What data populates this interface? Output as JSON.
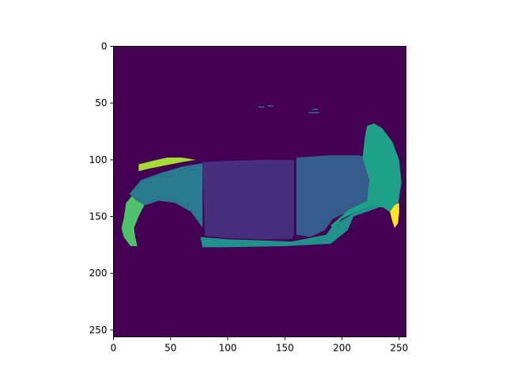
{
  "chart_data": {
    "type": "heatmap",
    "title": "",
    "xlabel": "",
    "ylabel": "",
    "xlim": [
      0,
      256
    ],
    "ylim": [
      256,
      0
    ],
    "x_ticks": [
      0,
      50,
      100,
      150,
      200,
      250
    ],
    "y_ticks": [
      0,
      50,
      100,
      150,
      200,
      250
    ],
    "colormap": "viridis",
    "grid": false,
    "background_value_color": "#440154",
    "segments": [
      {
        "id": "front-wheel-arch",
        "color": "#4fc16b",
        "polygon": [
          [
            9,
            152
          ],
          [
            11,
            138
          ],
          [
            16,
            132
          ],
          [
            21,
            133
          ],
          [
            27,
            140
          ],
          [
            22,
            150
          ],
          [
            18,
            160
          ],
          [
            19,
            168
          ],
          [
            21,
            176
          ],
          [
            15,
            176
          ],
          [
            9,
            168
          ],
          [
            7,
            160
          ]
        ]
      },
      {
        "id": "headlight-strip",
        "color": "#a5db36",
        "polygon": [
          [
            22,
            104
          ],
          [
            34,
            101
          ],
          [
            47,
            98
          ],
          [
            60,
            98
          ],
          [
            72,
            100
          ],
          [
            60,
            102
          ],
          [
            45,
            105
          ],
          [
            30,
            108
          ],
          [
            22,
            110
          ]
        ]
      },
      {
        "id": "front-fender",
        "color": "#2a788e",
        "polygon": [
          [
            14,
            130
          ],
          [
            24,
            118
          ],
          [
            40,
            112
          ],
          [
            60,
            106
          ],
          [
            78,
            103
          ],
          [
            78,
            160
          ],
          [
            68,
            146
          ],
          [
            54,
            138
          ],
          [
            40,
            136
          ],
          [
            28,
            140
          ],
          [
            20,
            136
          ]
        ]
      },
      {
        "id": "front-door",
        "color": "#472f7d",
        "polygon": [
          [
            78,
            102
          ],
          [
            100,
            101
          ],
          [
            130,
            100
          ],
          [
            158,
            100
          ],
          [
            158,
            166
          ],
          [
            156,
            170
          ],
          [
            130,
            170
          ],
          [
            100,
            169
          ],
          [
            80,
            167
          ]
        ]
      },
      {
        "id": "rear-door",
        "color": "#365c8d",
        "polygon": [
          [
            160,
            98
          ],
          [
            190,
            96
          ],
          [
            215,
            96
          ],
          [
            222,
            98
          ],
          [
            224,
            120
          ],
          [
            222,
            136
          ],
          [
            205,
            146
          ],
          [
            192,
            152
          ],
          [
            185,
            162
          ],
          [
            172,
            168
          ],
          [
            160,
            166
          ]
        ]
      },
      {
        "id": "rear-quarter",
        "color": "#1fa187",
        "polygon": [
          [
            218,
            98
          ],
          [
            220,
            80
          ],
          [
            222,
            70
          ],
          [
            228,
            68
          ],
          [
            235,
            72
          ],
          [
            244,
            84
          ],
          [
            250,
            100
          ],
          [
            252,
            120
          ],
          [
            249,
            140
          ],
          [
            245,
            148
          ],
          [
            236,
            142
          ],
          [
            226,
            141
          ],
          [
            212,
            146
          ],
          [
            200,
            152
          ],
          [
            192,
            160
          ],
          [
            190,
            158
          ],
          [
            206,
            144
          ],
          [
            222,
            136
          ],
          [
            224,
            118
          ]
        ]
      },
      {
        "id": "rocker-panel",
        "color": "#21918c",
        "polygon": [
          [
            76,
            168
          ],
          [
            100,
            170
          ],
          [
            130,
            171
          ],
          [
            156,
            172
          ],
          [
            186,
            166
          ],
          [
            192,
            158
          ],
          [
            212,
            146
          ],
          [
            226,
            141
          ],
          [
            235,
            141
          ],
          [
            210,
            150
          ],
          [
            205,
            162
          ],
          [
            195,
            170
          ],
          [
            190,
            174
          ],
          [
            150,
            176
          ],
          [
            100,
            177
          ],
          [
            78,
            177
          ]
        ]
      },
      {
        "id": "taillight",
        "color": "#fde725",
        "polygon": [
          [
            242,
            146
          ],
          [
            246,
            140
          ],
          [
            250,
            138
          ],
          [
            250,
            146
          ],
          [
            249,
            156
          ],
          [
            246,
            160
          ],
          [
            244,
            154
          ]
        ]
      },
      {
        "id": "roof-fragment-1",
        "color": "#2a788e",
        "polygon": [
          [
            127,
            53
          ],
          [
            132,
            53
          ],
          [
            132,
            54
          ],
          [
            127,
            54
          ]
        ]
      },
      {
        "id": "roof-fragment-2",
        "color": "#2a788e",
        "polygon": [
          [
            135,
            52
          ],
          [
            140,
            52
          ],
          [
            140,
            53
          ],
          [
            135,
            53
          ]
        ]
      },
      {
        "id": "roof-fragment-3",
        "color": "#2a788e",
        "polygon": [
          [
            174,
            55
          ],
          [
            179,
            55
          ],
          [
            179,
            56
          ],
          [
            174,
            56
          ]
        ]
      },
      {
        "id": "roof-fragment-4",
        "color": "#2a788e",
        "polygon": [
          [
            171,
            58
          ],
          [
            180,
            58
          ],
          [
            180,
            59
          ],
          [
            171,
            59
          ]
        ]
      }
    ]
  }
}
